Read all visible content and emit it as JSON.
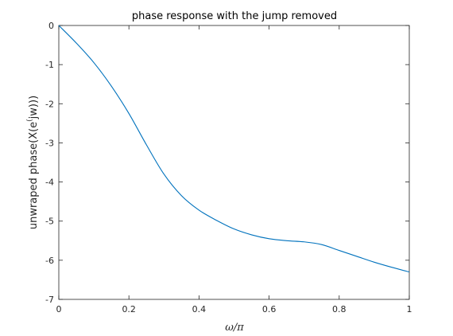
{
  "chart_data": {
    "type": "line",
    "title": "phase response with the jump removed",
    "xlabel": "ω/π",
    "ylabel": "unwraped phase(X(e^(jw)))",
    "ylabel_parts": {
      "pre": "unwraped phase(X(e",
      "sup": "(",
      "post": "jw)))"
    },
    "xlim": [
      0,
      1
    ],
    "ylim": [
      -7,
      0
    ],
    "xticks": [
      0,
      0.2,
      0.4,
      0.6,
      0.8,
      1
    ],
    "xtick_labels": [
      "0",
      "0.2",
      "0.4",
      "0.6",
      "0.8",
      "1"
    ],
    "yticks": [
      0,
      -1,
      -2,
      -3,
      -4,
      -5,
      -6,
      -7
    ],
    "ytick_labels": [
      "0",
      "-1",
      "-2",
      "-3",
      "-4",
      "-5",
      "-6",
      "-7"
    ],
    "grid": false,
    "line_color": "#0072BD",
    "series": [
      {
        "x": [
          0,
          0.05,
          0.1,
          0.15,
          0.2,
          0.25,
          0.3,
          0.35,
          0.4,
          0.45,
          0.5,
          0.55,
          0.6,
          0.65,
          0.7,
          0.75,
          0.8,
          0.85,
          0.9,
          0.95,
          1.0
        ],
        "values": [
          0,
          -0.45,
          -0.95,
          -1.55,
          -2.25,
          -3.05,
          -3.8,
          -4.35,
          -4.72,
          -4.98,
          -5.2,
          -5.35,
          -5.45,
          -5.5,
          -5.53,
          -5.6,
          -5.75,
          -5.9,
          -6.05,
          -6.18,
          -6.3
        ]
      }
    ]
  }
}
